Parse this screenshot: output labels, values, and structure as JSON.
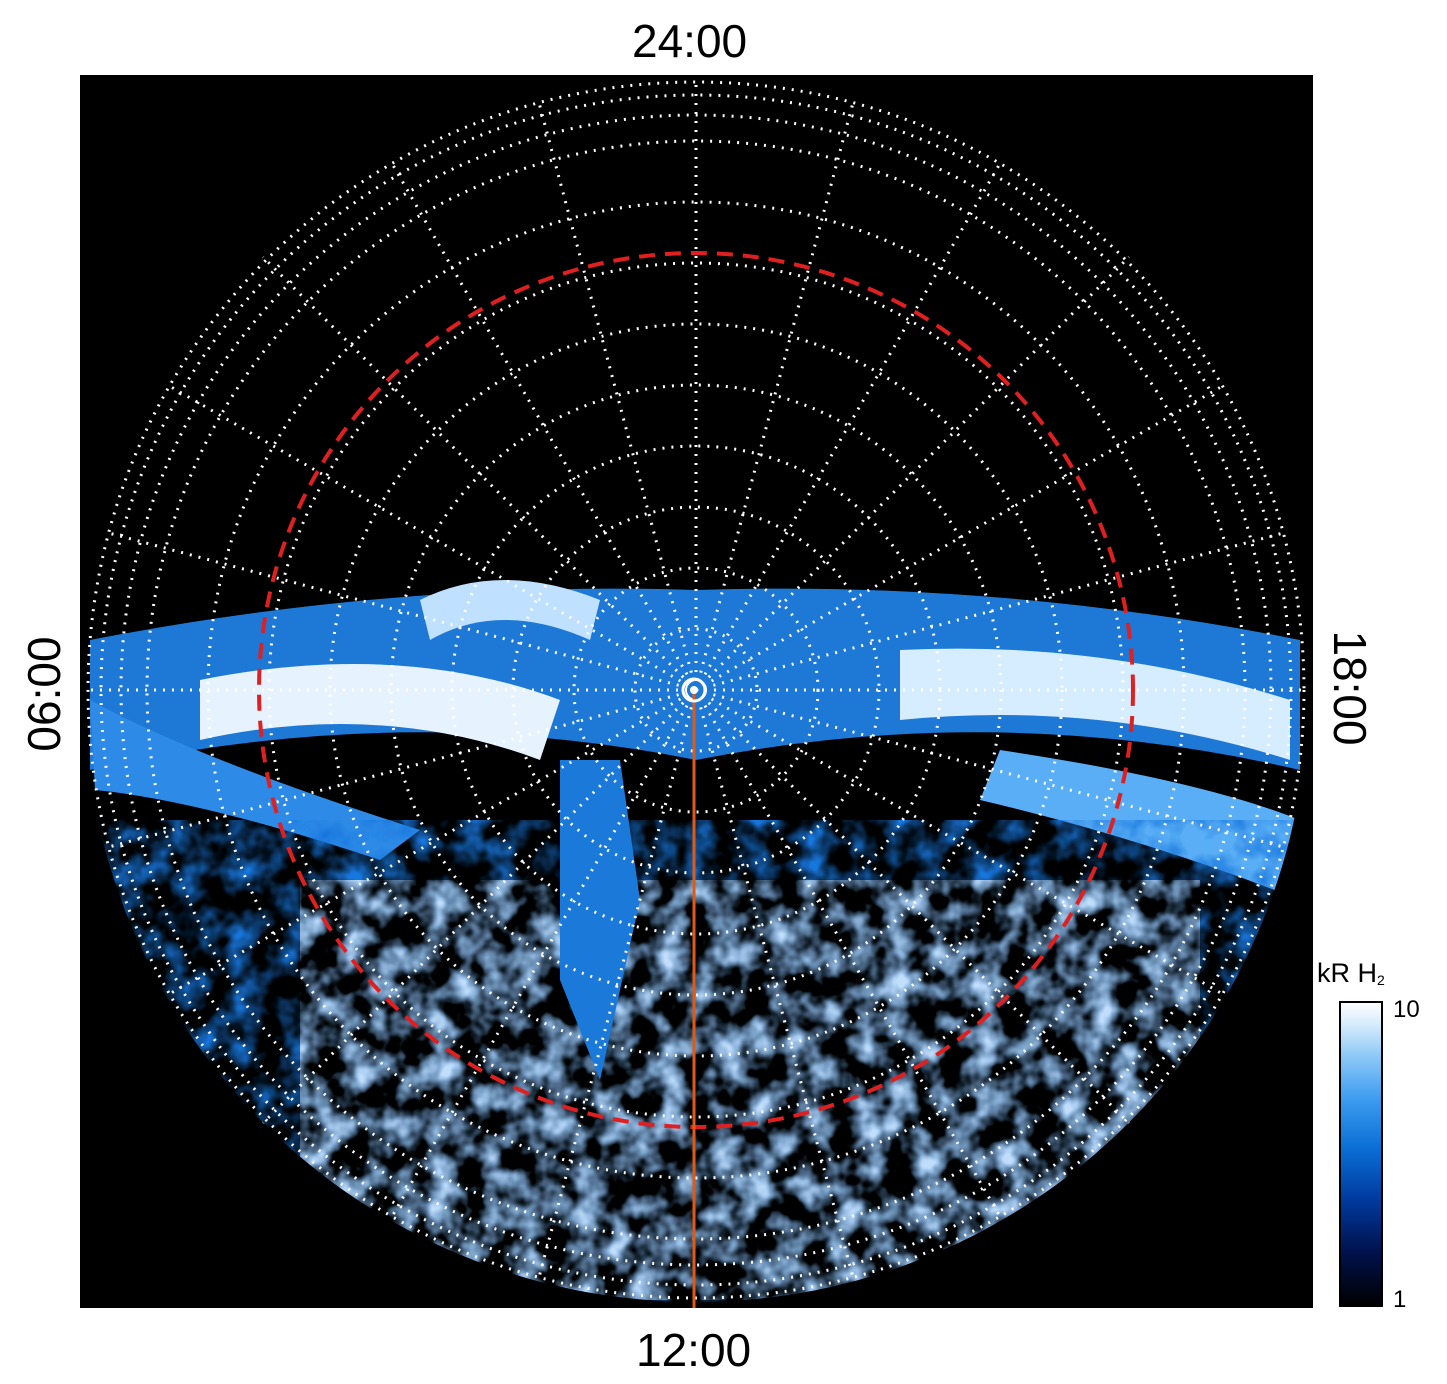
{
  "labels": {
    "top": "24:00",
    "bottom": "12:00",
    "left": "06:00",
    "right": "18:00"
  },
  "colorbar": {
    "unit": "kR H",
    "unit_subscript": "2",
    "max_label": "10",
    "min_label": "1",
    "colors": [
      "#000000",
      "#00124d",
      "#003a9e",
      "#0a6fd6",
      "#3d9cf0",
      "#8cc8f7",
      "#d8edfc",
      "#ffffff"
    ]
  },
  "colors": {
    "background": "#000000",
    "grid": "#ffffff",
    "reference_ring": "#e02020",
    "meridian_line": "#e05a14"
  }
}
